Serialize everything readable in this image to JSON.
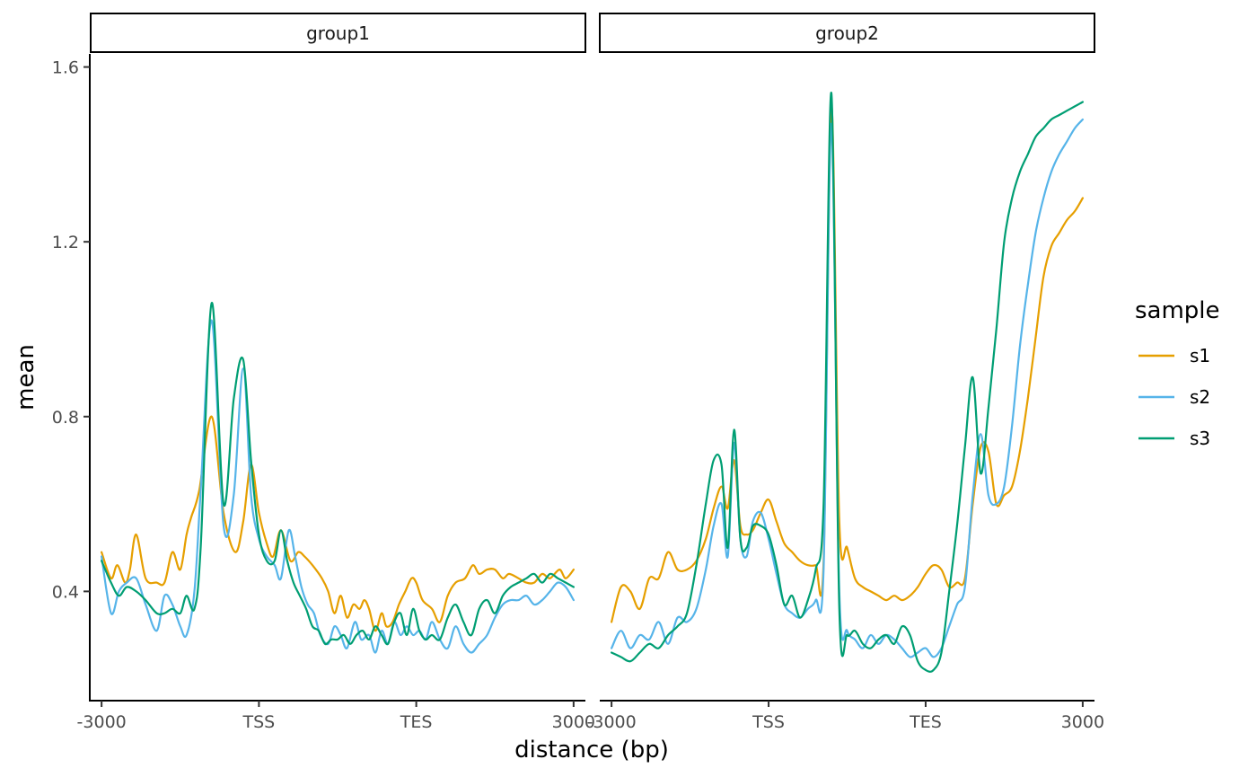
{
  "chart_data": {
    "type": "line",
    "xlabel": "distance (bp)",
    "ylabel": "mean",
    "ylim": [
      0.15,
      1.63
    ],
    "y_ticks": [
      0.4,
      0.8,
      1.2,
      1.6
    ],
    "y_tick_labels": [
      "0.4",
      "0.8",
      "1.2",
      "1.6"
    ],
    "xlim": [
      -3150,
      3150
    ],
    "x_ticks": [
      -3000,
      -1000,
      1000,
      3000
    ],
    "x_tick_labels": [
      "-3000",
      "TSS",
      "TES",
      "3000"
    ],
    "legend": {
      "title": "sample",
      "position": "right"
    },
    "series_colors": {
      "s1": "#E69F00",
      "s2": "#56B4E9",
      "s3": "#009E73"
    },
    "panels": [
      {
        "title": "group1",
        "series": [
          {
            "name": "s1",
            "x": [
              -3000,
              -2880,
              -2800,
              -2700,
              -2640,
              -2560,
              -2440,
              -2300,
              -2200,
              -2100,
              -2000,
              -1920,
              -1860,
              -1760,
              -1600,
              -1450,
              -1300,
              -1200,
              -1100,
              -1000,
              -900,
              -820,
              -720,
              -600,
              -500,
              -420,
              -320,
              -200,
              -120,
              -40,
              40,
              120,
              200,
              280,
              340,
              400,
              480,
              560,
              620,
              700,
              780,
              860,
              940,
              1000,
              1080,
              1200,
              1300,
              1400,
              1500,
              1620,
              1720,
              1800,
              1900,
              2000,
              2100,
              2180,
              2300,
              2400,
              2500,
              2600,
              2700,
              2820,
              2900,
              3000
            ],
            "values": [
              0.49,
              0.43,
              0.46,
              0.42,
              0.45,
              0.53,
              0.43,
              0.42,
              0.42,
              0.49,
              0.45,
              0.53,
              0.57,
              0.63,
              0.8,
              0.58,
              0.49,
              0.56,
              0.69,
              0.58,
              0.51,
              0.48,
              0.54,
              0.47,
              0.49,
              0.48,
              0.46,
              0.43,
              0.4,
              0.35,
              0.39,
              0.34,
              0.37,
              0.36,
              0.38,
              0.36,
              0.31,
              0.35,
              0.32,
              0.33,
              0.37,
              0.4,
              0.43,
              0.42,
              0.38,
              0.36,
              0.33,
              0.39,
              0.42,
              0.43,
              0.46,
              0.44,
              0.45,
              0.45,
              0.43,
              0.44,
              0.43,
              0.42,
              0.42,
              0.44,
              0.43,
              0.45,
              0.43,
              0.45
            ]
          },
          {
            "name": "s2",
            "x": [
              -3000,
              -2880,
              -2780,
              -2680,
              -2560,
              -2440,
              -2300,
              -2200,
              -2100,
              -2000,
              -1920,
              -1820,
              -1740,
              -1600,
              -1450,
              -1320,
              -1200,
              -1100,
              -1000,
              -900,
              -800,
              -720,
              -620,
              -540,
              -460,
              -380,
              -300,
              -220,
              -120,
              -40,
              40,
              120,
              220,
              300,
              400,
              480,
              560,
              640,
              720,
              800,
              880,
              960,
              1040,
              1120,
              1200,
              1300,
              1400,
              1500,
              1600,
              1700,
              1800,
              1900,
              2000,
              2100,
              2200,
              2300,
              2400,
              2500,
              2600,
              2700,
              2800,
              2900,
              3000
            ],
            "values": [
              0.48,
              0.35,
              0.4,
              0.42,
              0.43,
              0.37,
              0.31,
              0.39,
              0.37,
              0.32,
              0.3,
              0.4,
              0.63,
              1.02,
              0.55,
              0.62,
              0.91,
              0.62,
              0.52,
              0.48,
              0.46,
              0.43,
              0.54,
              0.48,
              0.41,
              0.37,
              0.35,
              0.3,
              0.28,
              0.32,
              0.3,
              0.27,
              0.33,
              0.29,
              0.3,
              0.26,
              0.31,
              0.28,
              0.33,
              0.3,
              0.32,
              0.3,
              0.31,
              0.29,
              0.33,
              0.29,
              0.27,
              0.32,
              0.28,
              0.26,
              0.28,
              0.3,
              0.34,
              0.37,
              0.38,
              0.38,
              0.39,
              0.37,
              0.38,
              0.4,
              0.42,
              0.41,
              0.38
            ]
          },
          {
            "name": "s3",
            "x": [
              -3000,
              -2880,
              -2780,
              -2680,
              -2560,
              -2440,
              -2300,
              -2200,
              -2100,
              -2000,
              -1920,
              -1820,
              -1740,
              -1600,
              -1450,
              -1320,
              -1200,
              -1100,
              -1000,
              -900,
              -800,
              -720,
              -640,
              -560,
              -480,
              -400,
              -320,
              -240,
              -160,
              -80,
              0,
              80,
              160,
              240,
              320,
              400,
              480,
              560,
              640,
              720,
              800,
              880,
              960,
              1040,
              1120,
              1200,
              1300,
              1400,
              1500,
              1600,
              1700,
              1800,
              1900,
              2000,
              2100,
              2200,
              2300,
              2400,
              2500,
              2600,
              2700,
              2800,
              2900,
              3000
            ],
            "values": [
              0.47,
              0.42,
              0.39,
              0.41,
              0.4,
              0.38,
              0.35,
              0.35,
              0.36,
              0.35,
              0.39,
              0.36,
              0.5,
              1.06,
              0.6,
              0.84,
              0.93,
              0.7,
              0.53,
              0.47,
              0.47,
              0.54,
              0.47,
              0.42,
              0.39,
              0.36,
              0.32,
              0.31,
              0.28,
              0.29,
              0.29,
              0.3,
              0.28,
              0.3,
              0.31,
              0.29,
              0.32,
              0.3,
              0.28,
              0.33,
              0.35,
              0.3,
              0.36,
              0.31,
              0.29,
              0.3,
              0.29,
              0.34,
              0.37,
              0.33,
              0.3,
              0.36,
              0.38,
              0.35,
              0.39,
              0.41,
              0.42,
              0.43,
              0.44,
              0.42,
              0.44,
              0.43,
              0.42,
              0.41
            ]
          }
        ]
      },
      {
        "title": "group2",
        "series": [
          {
            "name": "s1",
            "x": [
              -3000,
              -2880,
              -2760,
              -2640,
              -2520,
              -2400,
              -2280,
              -2160,
              -2040,
              -1920,
              -1800,
              -1700,
              -1600,
              -1520,
              -1440,
              -1360,
              -1280,
              -1200,
              -1100,
              -1000,
              -900,
              -800,
              -700,
              -600,
              -500,
              -400,
              -300,
              -200,
              -100,
              0,
              100,
              200,
              300,
              400,
              500,
              600,
              700,
              800,
              900,
              1000,
              1100,
              1200,
              1300,
              1400,
              1500,
              1600,
              1700,
              1800,
              1900,
              2000,
              2100,
              2200,
              2300,
              2400,
              2500,
              2600,
              2700,
              2800,
              2900,
              3000
            ],
            "values": [
              0.33,
              0.41,
              0.4,
              0.36,
              0.43,
              0.43,
              0.49,
              0.45,
              0.45,
              0.47,
              0.52,
              0.59,
              0.64,
              0.59,
              0.7,
              0.55,
              0.53,
              0.54,
              0.58,
              0.61,
              0.56,
              0.51,
              0.49,
              0.47,
              0.46,
              0.46,
              0.47,
              1.51,
              0.56,
              0.5,
              0.43,
              0.41,
              0.4,
              0.39,
              0.38,
              0.39,
              0.38,
              0.39,
              0.41,
              0.44,
              0.46,
              0.45,
              0.41,
              0.42,
              0.43,
              0.6,
              0.73,
              0.72,
              0.6,
              0.62,
              0.64,
              0.72,
              0.84,
              0.98,
              1.12,
              1.19,
              1.22,
              1.25,
              1.27,
              1.3
            ]
          },
          {
            "name": "s2",
            "x": [
              -3000,
              -2880,
              -2760,
              -2640,
              -2520,
              -2400,
              -2280,
              -2160,
              -2040,
              -1920,
              -1800,
              -1700,
              -1600,
              -1520,
              -1440,
              -1360,
              -1280,
              -1200,
              -1100,
              -1000,
              -900,
              -800,
              -700,
              -600,
              -500,
              -400,
              -300,
              -200,
              -100,
              0,
              100,
              200,
              300,
              400,
              500,
              600,
              700,
              800,
              900,
              1000,
              1100,
              1200,
              1300,
              1400,
              1500,
              1600,
              1700,
              1800,
              1900,
              2000,
              2100,
              2200,
              2300,
              2400,
              2500,
              2600,
              2700,
              2800,
              2900,
              3000
            ],
            "values": [
              0.27,
              0.31,
              0.27,
              0.3,
              0.29,
              0.33,
              0.28,
              0.34,
              0.33,
              0.36,
              0.45,
              0.55,
              0.6,
              0.48,
              0.74,
              0.52,
              0.48,
              0.56,
              0.58,
              0.52,
              0.44,
              0.37,
              0.35,
              0.34,
              0.36,
              0.38,
              0.45,
              1.47,
              0.4,
              0.31,
              0.29,
              0.27,
              0.3,
              0.28,
              0.3,
              0.29,
              0.27,
              0.25,
              0.26,
              0.27,
              0.25,
              0.27,
              0.32,
              0.37,
              0.41,
              0.62,
              0.76,
              0.62,
              0.6,
              0.64,
              0.78,
              0.96,
              1.1,
              1.22,
              1.3,
              1.36,
              1.4,
              1.43,
              1.46,
              1.48
            ]
          },
          {
            "name": "s3",
            "x": [
              -3000,
              -2880,
              -2760,
              -2640,
              -2520,
              -2400,
              -2280,
              -2160,
              -2040,
              -1920,
              -1800,
              -1700,
              -1600,
              -1520,
              -1440,
              -1360,
              -1280,
              -1200,
              -1100,
              -1000,
              -900,
              -800,
              -700,
              -600,
              -500,
              -400,
              -300,
              -200,
              -100,
              0,
              100,
              200,
              300,
              400,
              500,
              600,
              700,
              800,
              900,
              1000,
              1100,
              1200,
              1300,
              1400,
              1500,
              1600,
              1700,
              1800,
              1900,
              2000,
              2100,
              2200,
              2300,
              2400,
              2500,
              2600,
              2700,
              2800,
              2900,
              3000
            ],
            "values": [
              0.26,
              0.25,
              0.24,
              0.26,
              0.28,
              0.27,
              0.3,
              0.32,
              0.35,
              0.46,
              0.6,
              0.7,
              0.69,
              0.5,
              0.77,
              0.52,
              0.5,
              0.55,
              0.55,
              0.53,
              0.46,
              0.37,
              0.39,
              0.34,
              0.38,
              0.45,
              0.6,
              1.54,
              0.36,
              0.3,
              0.31,
              0.28,
              0.27,
              0.29,
              0.3,
              0.28,
              0.32,
              0.3,
              0.24,
              0.22,
              0.22,
              0.26,
              0.4,
              0.55,
              0.73,
              0.89,
              0.67,
              0.82,
              1.0,
              1.2,
              1.3,
              1.36,
              1.4,
              1.44,
              1.46,
              1.48,
              1.49,
              1.5,
              1.51,
              1.52
            ]
          }
        ]
      }
    ]
  }
}
